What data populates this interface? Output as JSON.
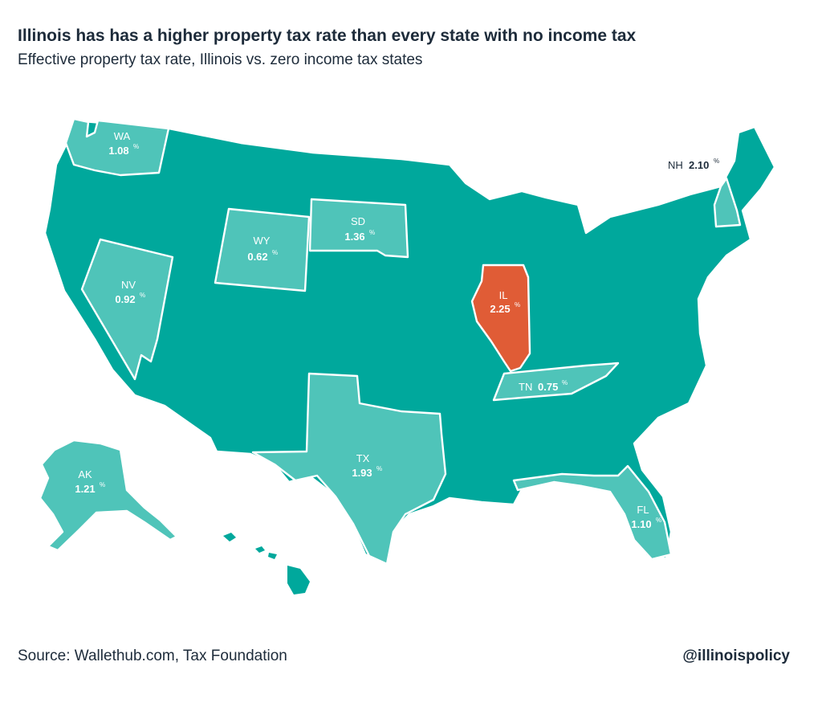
{
  "title": "Illinois has has a higher property tax rate than every state with no income tax",
  "subtitle": "Effective property tax rate, Illinois vs. zero income tax states",
  "footer": {
    "source": "Source: Wallethub.com, Tax Foundation",
    "handle": "@illinoispolicy"
  },
  "colors": {
    "base": "#00a89c",
    "no_income_tax": "#4fc4b9",
    "illinois": "#e05c36"
  },
  "states": {
    "WA": {
      "abbr": "WA",
      "rate": "1.08",
      "unit": "%"
    },
    "NV": {
      "abbr": "NV",
      "rate": "0.92",
      "unit": "%"
    },
    "WY": {
      "abbr": "WY",
      "rate": "0.62",
      "unit": "%"
    },
    "SD": {
      "abbr": "SD",
      "rate": "1.36",
      "unit": "%"
    },
    "IL": {
      "abbr": "IL",
      "rate": "2.25",
      "unit": "%"
    },
    "TN": {
      "abbr": "TN",
      "rate": "0.75",
      "unit": "%"
    },
    "TX": {
      "abbr": "TX",
      "rate": "1.93",
      "unit": "%"
    },
    "FL": {
      "abbr": "FL",
      "rate": "1.10",
      "unit": "%"
    },
    "AK": {
      "abbr": "AK",
      "rate": "1.21",
      "unit": "%"
    },
    "NH": {
      "abbr": "NH",
      "rate": "2.10",
      "unit": "%"
    }
  }
}
